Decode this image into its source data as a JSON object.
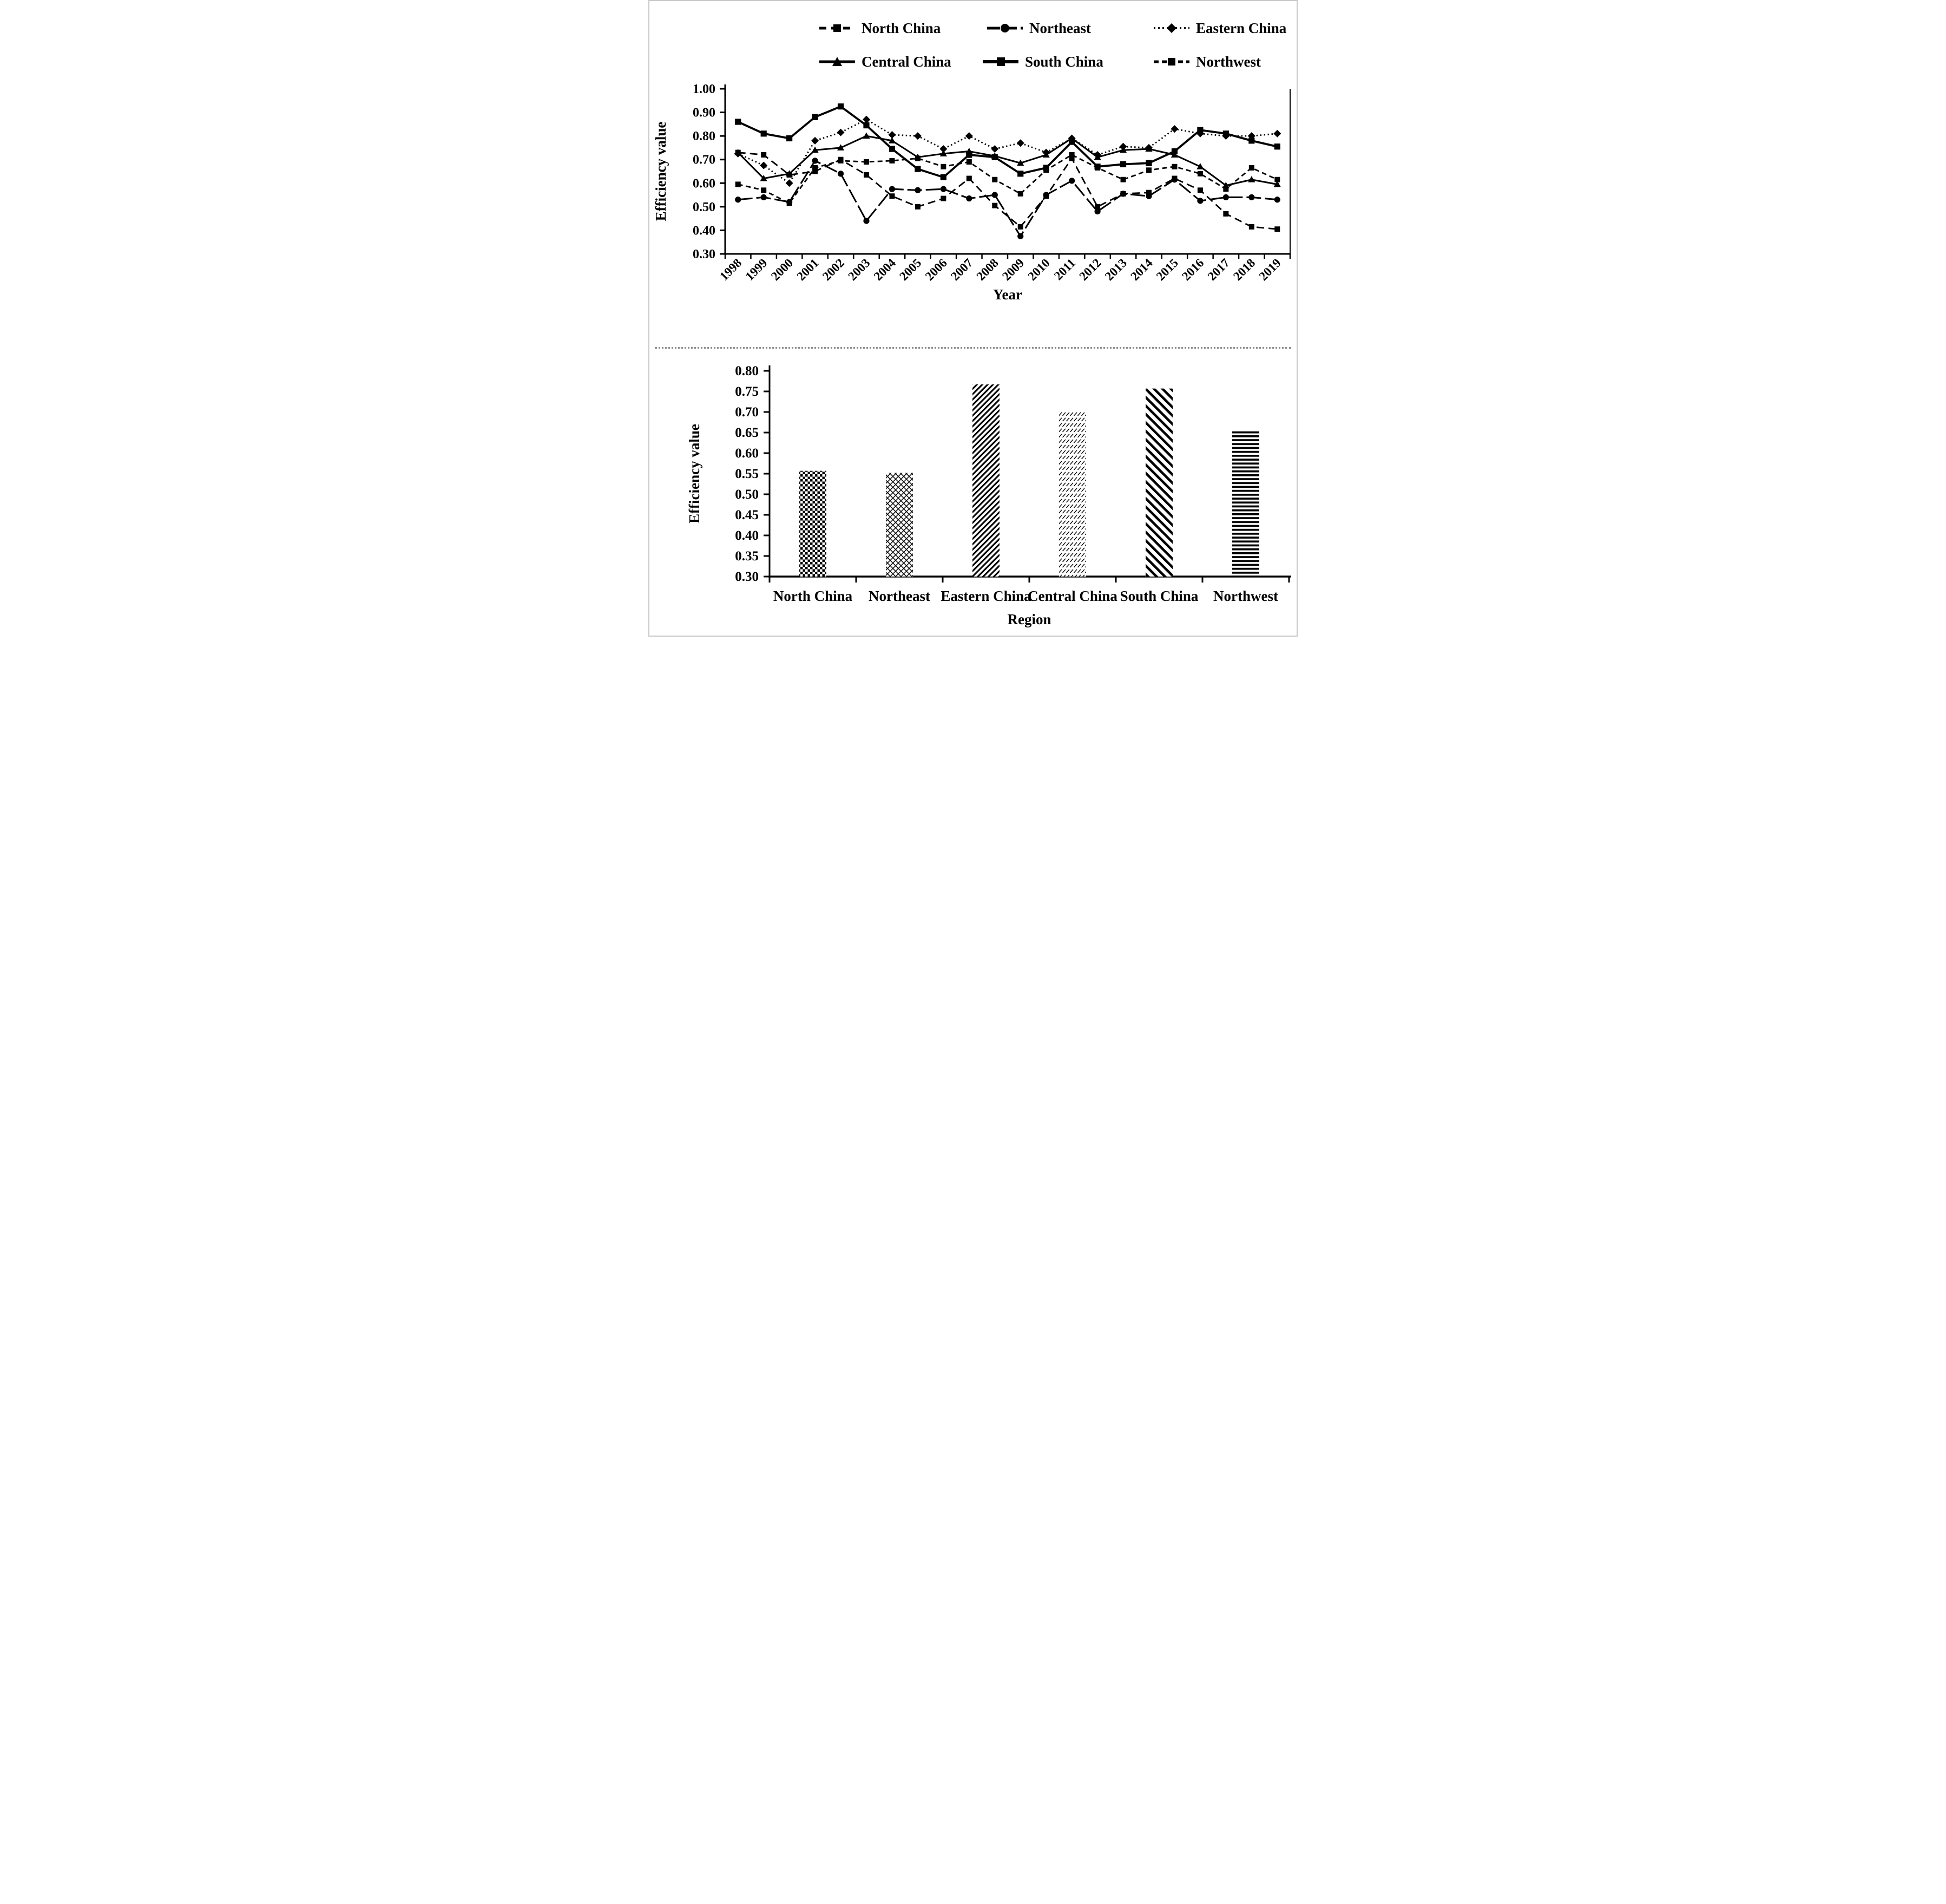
{
  "legend": {
    "items": [
      {
        "label": "North China",
        "marker": "square",
        "line_style": "dash"
      },
      {
        "label": "Northeast",
        "marker": "circle",
        "line_style": "long-dash"
      },
      {
        "label": "Eastern China",
        "marker": "diamond",
        "line_style": "dotted"
      },
      {
        "label": "Central China",
        "marker": "triangle",
        "line_style": "solid"
      },
      {
        "label": "South China",
        "marker": "square",
        "line_style": "solid-thick"
      },
      {
        "label": "Northwest",
        "marker": "square",
        "line_style": "short-dash"
      }
    ]
  },
  "chart_data": [
    {
      "type": "line",
      "title": "",
      "xlabel": "Year",
      "ylabel": "Efficiency value",
      "ylim": [
        0.3,
        1.0
      ],
      "yticks": [
        "1.00",
        "0.90",
        "0.80",
        "0.70",
        "0.60",
        "0.50",
        "0.40",
        "0.30"
      ],
      "grid": false,
      "legend_position": "top",
      "x": [
        "1998",
        "1999",
        "2000",
        "2001",
        "2002",
        "2003",
        "2004",
        "2005",
        "2006",
        "2007",
        "2008",
        "2009",
        "2010",
        "2011",
        "2012",
        "2013",
        "2014",
        "2015",
        "2016",
        "2017",
        "2018",
        "2019"
      ],
      "series": [
        {
          "name": "North China",
          "marker": "square",
          "line_style": "dash",
          "values": [
            0.73,
            0.72,
            0.635,
            0.65,
            0.7,
            0.635,
            0.545,
            0.5,
            0.535,
            0.62,
            0.505,
            0.415,
            0.545,
            0.705,
            0.5,
            0.555,
            0.56,
            0.62,
            0.57,
            0.47,
            0.415,
            0.405
          ]
        },
        {
          "name": "Northeast",
          "marker": "circle",
          "line_style": "long-dash",
          "values": [
            0.53,
            0.54,
            0.52,
            0.695,
            0.64,
            0.44,
            0.575,
            0.57,
            0.575,
            0.535,
            0.55,
            0.375,
            0.55,
            0.61,
            0.48,
            0.555,
            0.545,
            0.615,
            0.525,
            0.54,
            0.54,
            0.53
          ]
        },
        {
          "name": "Eastern China",
          "marker": "diamond",
          "line_style": "dotted",
          "values": [
            0.725,
            0.675,
            0.6,
            0.78,
            0.815,
            0.87,
            0.805,
            0.8,
            0.745,
            0.8,
            0.745,
            0.77,
            0.73,
            0.79,
            0.72,
            0.755,
            0.75,
            0.83,
            0.81,
            0.8,
            0.8,
            0.81
          ]
        },
        {
          "name": "Central China",
          "marker": "triangle",
          "line_style": "solid",
          "values": [
            0.73,
            0.62,
            0.64,
            0.74,
            0.75,
            0.8,
            0.78,
            0.71,
            0.725,
            0.735,
            0.715,
            0.685,
            0.72,
            0.79,
            0.71,
            0.74,
            0.745,
            0.72,
            0.67,
            0.59,
            0.615,
            0.595
          ]
        },
        {
          "name": "South China",
          "marker": "square",
          "line_style": "solid-thick",
          "values": [
            0.86,
            0.81,
            0.79,
            0.88,
            0.925,
            0.845,
            0.745,
            0.66,
            0.625,
            0.72,
            0.71,
            0.64,
            0.665,
            0.775,
            0.67,
            0.68,
            0.685,
            0.735,
            0.825,
            0.81,
            0.78,
            0.755
          ]
        },
        {
          "name": "Northwest",
          "marker": "square",
          "line_style": "short-dash",
          "values": [
            0.595,
            0.57,
            0.515,
            0.665,
            0.695,
            0.69,
            0.695,
            0.705,
            0.67,
            0.69,
            0.615,
            0.555,
            0.655,
            0.72,
            0.665,
            0.615,
            0.655,
            0.67,
            0.64,
            0.575,
            0.665,
            0.615
          ]
        }
      ]
    },
    {
      "type": "bar",
      "title": "",
      "xlabel": "Region",
      "ylabel": "Efficiency value",
      "ylim": [
        0.3,
        0.8
      ],
      "yticks": [
        "0.80",
        "0.75",
        "0.70",
        "0.65",
        "0.60",
        "0.55",
        "0.50",
        "0.45",
        "0.40",
        "0.35",
        "0.30"
      ],
      "grid": false,
      "categories": [
        "North China",
        "Northeast",
        "Eastern China",
        "Central China",
        "South China",
        "Northwest"
      ],
      "values": [
        0.557,
        0.552,
        0.767,
        0.703,
        0.757,
        0.657
      ],
      "hatches": [
        "checker",
        "crosshatch",
        "diag-down-bold",
        "diag-light",
        "diag-up-bold",
        "hlines"
      ],
      "bar_color": "#000000"
    }
  ]
}
